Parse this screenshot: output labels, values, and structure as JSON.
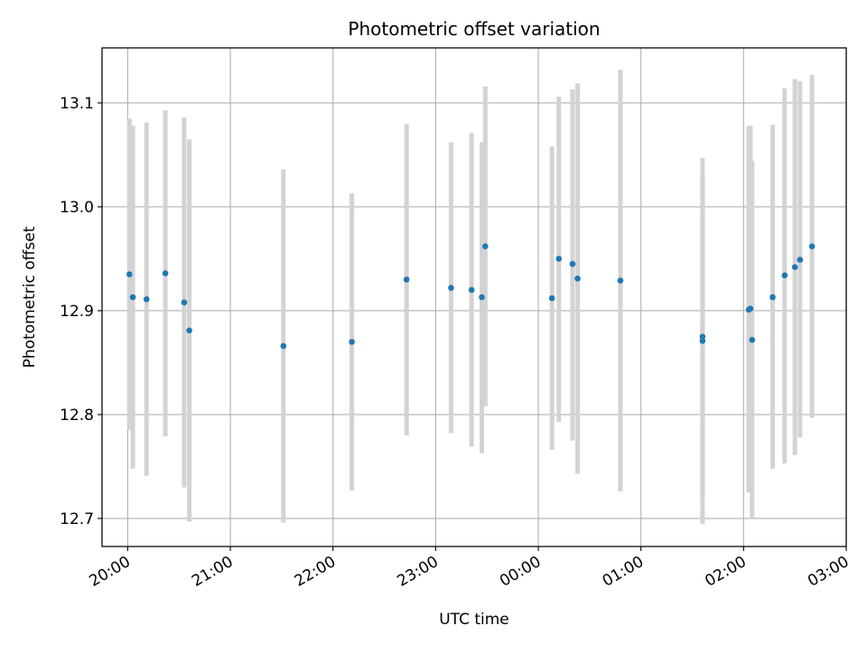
{
  "chart_data": {
    "type": "scatter",
    "title": "Photometric offset variation",
    "xlabel": "UTC time",
    "ylabel": "Photometric offset",
    "grid": true,
    "legend": "none",
    "x_axis_kind": "time",
    "xlim": [
      "19:45",
      "03:00"
    ],
    "ylim": [
      12.673,
      13.153
    ],
    "x_ticks": [
      "20:00",
      "21:00",
      "22:00",
      "23:00",
      "00:00",
      "01:00",
      "02:00",
      "03:00"
    ],
    "y_ticks": [
      12.7,
      12.8,
      12.9,
      13.0,
      13.1
    ],
    "y_tick_labels": [
      "12.7",
      "12.8",
      "12.9",
      "13.0",
      "13.1"
    ],
    "colors": {
      "point": "#1f77b4",
      "errorbar": "#d3d3d3",
      "grid": "#b0b0b0"
    },
    "points": [
      {
        "t": "20:01",
        "y": 12.935,
        "lo": 12.785,
        "hi": 13.085
      },
      {
        "t": "20:03",
        "y": 12.913,
        "lo": 12.748,
        "hi": 13.078
      },
      {
        "t": "20:11",
        "y": 12.911,
        "lo": 12.741,
        "hi": 13.081
      },
      {
        "t": "20:22",
        "y": 12.936,
        "lo": 12.779,
        "hi": 13.093
      },
      {
        "t": "20:33",
        "y": 12.908,
        "lo": 12.73,
        "hi": 13.086
      },
      {
        "t": "20:36",
        "y": 12.881,
        "lo": 12.697,
        "hi": 13.065
      },
      {
        "t": "21:31",
        "y": 12.866,
        "lo": 12.696,
        "hi": 13.036
      },
      {
        "t": "22:11",
        "y": 12.87,
        "lo": 12.727,
        "hi": 13.013
      },
      {
        "t": "22:43",
        "y": 12.93,
        "lo": 12.78,
        "hi": 13.08
      },
      {
        "t": "23:09",
        "y": 12.922,
        "lo": 12.782,
        "hi": 13.062
      },
      {
        "t": "23:21",
        "y": 12.92,
        "lo": 12.769,
        "hi": 13.071
      },
      {
        "t": "23:27",
        "y": 12.913,
        "lo": 12.763,
        "hi": 13.062
      },
      {
        "t": "23:29",
        "y": 12.962,
        "lo": 12.808,
        "hi": 13.116
      },
      {
        "t": "00:08",
        "y": 12.912,
        "lo": 12.766,
        "hi": 13.058
      },
      {
        "t": "00:12",
        "y": 12.95,
        "lo": 12.793,
        "hi": 13.106
      },
      {
        "t": "00:20",
        "y": 12.945,
        "lo": 12.775,
        "hi": 13.113
      },
      {
        "t": "00:23",
        "y": 12.931,
        "lo": 12.743,
        "hi": 13.119
      },
      {
        "t": "00:48",
        "y": 12.929,
        "lo": 12.726,
        "hi": 13.132
      },
      {
        "t": "01:36",
        "y": 12.871,
        "lo": 12.695,
        "hi": 13.047
      },
      {
        "t": "01:36",
        "y": 12.875,
        "lo": 12.72,
        "hi": 13.03
      },
      {
        "t": "02:03",
        "y": 12.901,
        "lo": 12.725,
        "hi": 13.078
      },
      {
        "t": "02:04",
        "y": 12.902,
        "lo": 12.76,
        "hi": 13.078
      },
      {
        "t": "02:05",
        "y": 12.872,
        "lo": 12.7,
        "hi": 13.044
      },
      {
        "t": "02:17",
        "y": 12.913,
        "lo": 12.748,
        "hi": 13.079
      },
      {
        "t": "02:24",
        "y": 12.934,
        "lo": 12.753,
        "hi": 13.114
      },
      {
        "t": "02:30",
        "y": 12.942,
        "lo": 12.761,
        "hi": 13.123
      },
      {
        "t": "02:33",
        "y": 12.949,
        "lo": 12.778,
        "hi": 13.121
      },
      {
        "t": "02:40",
        "y": 12.962,
        "lo": 12.797,
        "hi": 13.127
      }
    ]
  }
}
